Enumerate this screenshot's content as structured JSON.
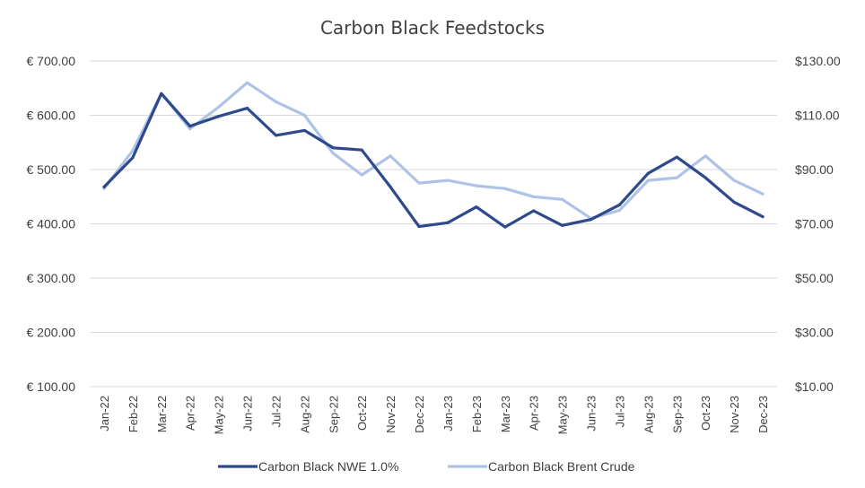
{
  "chart_data": {
    "type": "line",
    "title": "Carbon Black Feedstocks",
    "categories": [
      "Jan-22",
      "Feb-22",
      "Mar-22",
      "Apr-22",
      "May-22",
      "Jun-22",
      "Jul-22",
      "Aug-22",
      "Sep-22",
      "Oct-22",
      "Nov-22",
      "Dec-22",
      "Jan-23",
      "Feb-23",
      "Mar-23",
      "Apr-23",
      "May-23",
      "Jun-23",
      "Jul-23",
      "Aug-23",
      "Sep-23",
      "Oct-23",
      "Nov-23",
      "Dec-23"
    ],
    "y_left": {
      "ylim": [
        100,
        700
      ],
      "ticks": [
        100,
        200,
        300,
        400,
        500,
        600,
        700
      ],
      "tick_labels": [
        "€ 100.00",
        "€ 200.00",
        "€ 300.00",
        "€ 400.00",
        "€ 500.00",
        "€ 600.00",
        "€ 700.00"
      ]
    },
    "y_right": {
      "ylim": [
        10,
        130
      ],
      "ticks": [
        10,
        30,
        50,
        70,
        90,
        110,
        130
      ],
      "tick_labels": [
        "$10.00",
        "$30.00",
        "$50.00",
        "$70.00",
        "$90.00",
        "$110.00",
        "$130.00"
      ]
    },
    "series": [
      {
        "name": "Carbon Black NWE 1.0%",
        "axis": "left",
        "color": "#2e4a8c",
        "values": [
          468,
          522,
          640,
          580,
          598,
          613,
          563,
          572,
          540,
          536,
          468,
          395,
          402,
          431,
          394,
          424,
          397,
          408,
          435,
          493,
          523,
          485,
          440,
          413
        ]
      },
      {
        "name": "Carbon Black Brent Crude",
        "axis": "right",
        "color": "#aec3e6",
        "values": [
          83,
          97,
          118,
          105,
          113,
          122,
          115,
          110,
          96,
          88,
          95,
          85,
          86,
          84,
          83,
          80,
          79,
          72,
          75,
          86,
          87,
          95,
          86,
          81
        ]
      }
    ],
    "legend_position": "bottom",
    "grid": true
  }
}
